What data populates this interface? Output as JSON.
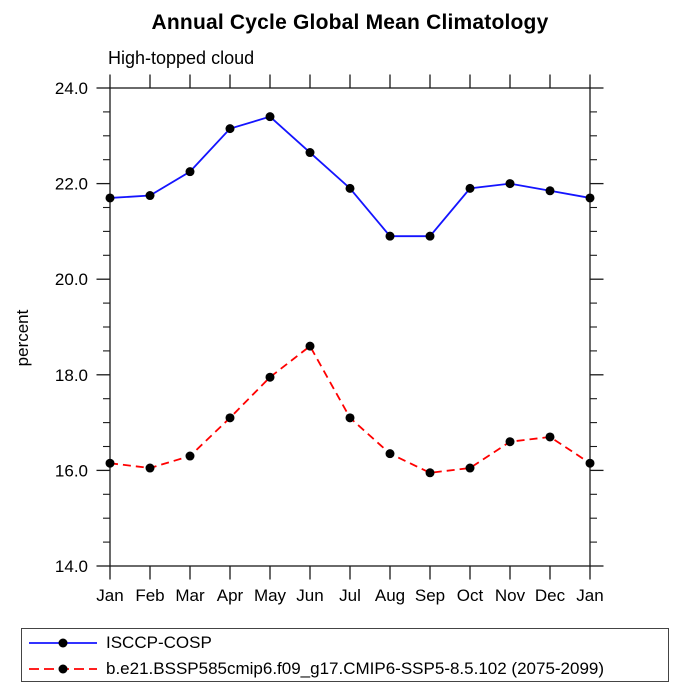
{
  "chart": {
    "title": "Annual Cycle Global Mean Climatology",
    "subtitle": "High-topped cloud",
    "ylabel": "percent"
  },
  "chart_data": {
    "type": "line",
    "title": "Annual Cycle Global Mean Climatology",
    "subtitle": "High-topped cloud",
    "xlabel": "",
    "ylabel": "percent",
    "categories": [
      "Jan",
      "Feb",
      "Mar",
      "Apr",
      "May",
      "Jun",
      "Jul",
      "Aug",
      "Sep",
      "Oct",
      "Nov",
      "Dec",
      "Jan"
    ],
    "ylim": [
      14.0,
      24.0
    ],
    "y_major_ticks": [
      14.0,
      16.0,
      18.0,
      20.0,
      22.0,
      24.0
    ],
    "y_major_tick_labels": [
      "14.0",
      "16.0",
      "18.0",
      "20.0",
      "22.0",
      "24.0"
    ],
    "y_minor_step": 0.5,
    "grid": false,
    "legend_position": "bottom-left-box",
    "colors": {
      "axis": "#1a1a1a",
      "series1": "#1414ff",
      "series2": "#ff0000",
      "marker": "#000000"
    },
    "series": [
      {
        "name": "ISCCP-COSP",
        "color": "#1414ff",
        "line_style": "solid",
        "marker": "filled-circle",
        "values": [
          21.7,
          21.75,
          22.25,
          23.15,
          23.4,
          22.65,
          21.9,
          20.9,
          20.9,
          21.9,
          22.0,
          21.85,
          21.7
        ]
      },
      {
        "name": "b.e21.BSSP585cmip6.f09_g17.CMIP6-SSP5-8.5.102 (2075-2099)",
        "color": "#ff0000",
        "line_style": "dashed",
        "marker": "filled-circle",
        "values": [
          16.15,
          16.05,
          16.3,
          17.1,
          17.95,
          18.6,
          17.1,
          16.35,
          15.95,
          16.05,
          16.6,
          16.7,
          16.15
        ]
      }
    ]
  }
}
